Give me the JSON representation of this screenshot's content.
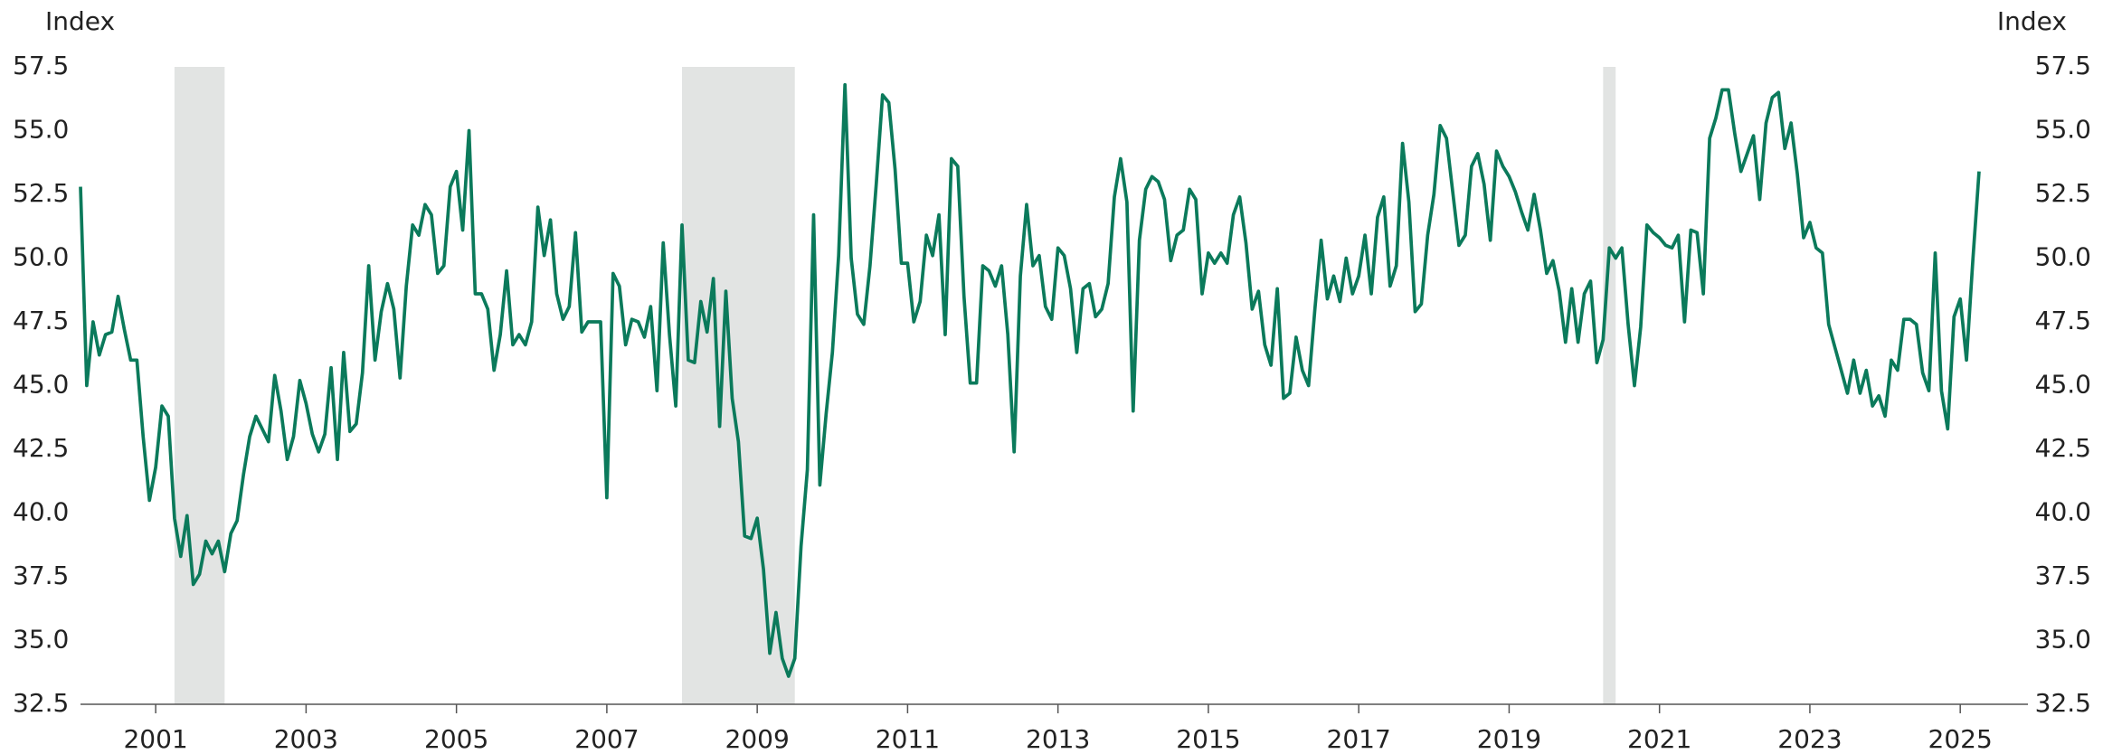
{
  "chart_data": {
    "type": "line",
    "y_label": "Index",
    "y2_label": "Index",
    "color": "#0b7a5b",
    "shade_color": "#e2e4e3",
    "shaded_periods": [
      [
        2001.25,
        2001.917
      ],
      [
        2008.0,
        2009.5
      ],
      [
        2020.25,
        2020.417
      ]
    ],
    "xlim": [
      2000,
      2025.9
    ],
    "xticks": [
      2001,
      2003,
      2005,
      2007,
      2009,
      2011,
      2013,
      2015,
      2017,
      2019,
      2021,
      2023,
      2025
    ],
    "ylim": [
      32.5,
      57.5
    ],
    "yticks": [
      32.5,
      {
        "value": 35,
        "label": "35.0"
      },
      37.5,
      {
        "value": 40,
        "label": "40.0"
      },
      42.5,
      {
        "value": 45,
        "label": "45.0"
      },
      47.5,
      {
        "value": 50,
        "label": "50.0"
      },
      52.5,
      {
        "value": 55,
        "label": "55.0"
      },
      57.5
    ],
    "y2lim": [
      32.5,
      57.5
    ],
    "y2ticks": [
      32.5,
      {
        "value": 35,
        "label": "35.0"
      },
      37.5,
      {
        "value": 40,
        "label": "40.0"
      },
      42.5,
      {
        "value": 45,
        "label": "45.0"
      },
      47.5,
      {
        "value": 50,
        "label": "50.0"
      },
      52.5,
      {
        "value": 55,
        "label": "55.0"
      },
      57.5
    ],
    "x": [
      2000,
      2000.083,
      2000.167,
      2000.25,
      2000.333,
      2000.417,
      2000.5,
      2000.583,
      2000.667,
      2000.75,
      2000.833,
      2000.917,
      2001,
      2001.083,
      2001.167,
      2001.25,
      2001.333,
      2001.417,
      2001.5,
      2001.583,
      2001.667,
      2001.75,
      2001.833,
      2001.917,
      2002,
      2002.083,
      2002.167,
      2002.25,
      2002.333,
      2002.417,
      2002.5,
      2002.583,
      2002.667,
      2002.75,
      2002.833,
      2002.917,
      2003,
      2003.083,
      2003.167,
      2003.25,
      2003.333,
      2003.417,
      2003.5,
      2003.583,
      2003.667,
      2003.75,
      2003.833,
      2003.917,
      2004,
      2004.083,
      2004.167,
      2004.25,
      2004.333,
      2004.417,
      2004.5,
      2004.583,
      2004.667,
      2004.75,
      2004.833,
      2004.917,
      2005,
      2005.083,
      2005.167,
      2005.25,
      2005.333,
      2005.417,
      2005.5,
      2005.583,
      2005.667,
      2005.75,
      2005.833,
      2005.917,
      2006,
      2006.083,
      2006.167,
      2006.25,
      2006.333,
      2006.417,
      2006.5,
      2006.583,
      2006.667,
      2006.75,
      2006.833,
      2006.917,
      2007,
      2007.083,
      2007.167,
      2007.25,
      2007.333,
      2007.417,
      2007.5,
      2007.583,
      2007.667,
      2007.75,
      2007.833,
      2007.917,
      2008,
      2008.083,
      2008.167,
      2008.25,
      2008.333,
      2008.417,
      2008.5,
      2008.583,
      2008.667,
      2008.75,
      2008.833,
      2008.917,
      2009,
      2009.083,
      2009.167,
      2009.25,
      2009.333,
      2009.417,
      2009.5,
      2009.583,
      2009.667,
      2009.75,
      2009.833,
      2009.917,
      2010,
      2010.083,
      2010.167,
      2010.25,
      2010.333,
      2010.417,
      2010.5,
      2010.583,
      2010.667,
      2010.75,
      2010.833,
      2010.917,
      2011,
      2011.083,
      2011.167,
      2011.25,
      2011.333,
      2011.417,
      2011.5,
      2011.583,
      2011.667,
      2011.75,
      2011.833,
      2011.917,
      2012,
      2012.083,
      2012.167,
      2012.25,
      2012.333,
      2012.417,
      2012.5,
      2012.583,
      2012.667,
      2012.75,
      2012.833,
      2012.917,
      2013,
      2013.083,
      2013.167,
      2013.25,
      2013.333,
      2013.417,
      2013.5,
      2013.583,
      2013.667,
      2013.75,
      2013.833,
      2013.917,
      2014,
      2014.083,
      2014.167,
      2014.25,
      2014.333,
      2014.417,
      2014.5,
      2014.583,
      2014.667,
      2014.75,
      2014.833,
      2014.917,
      2015,
      2015.083,
      2015.167,
      2015.25,
      2015.333,
      2015.417,
      2015.5,
      2015.583,
      2015.667,
      2015.75,
      2015.833,
      2015.917,
      2016,
      2016.083,
      2016.167,
      2016.25,
      2016.333,
      2016.417,
      2016.5,
      2016.583,
      2016.667,
      2016.75,
      2016.833,
      2016.917,
      2017,
      2017.083,
      2017.167,
      2017.25,
      2017.333,
      2017.417,
      2017.5,
      2017.583,
      2017.667,
      2017.75,
      2017.833,
      2017.917,
      2018,
      2018.083,
      2018.167,
      2018.25,
      2018.333,
      2018.417,
      2018.5,
      2018.583,
      2018.667,
      2018.75,
      2018.833,
      2018.917,
      2019,
      2019.083,
      2019.167,
      2019.25,
      2019.333,
      2019.417,
      2019.5,
      2019.583,
      2019.667,
      2019.75,
      2019.833,
      2019.917,
      2020,
      2020.083,
      2020.167,
      2020.25,
      2020.333,
      2020.417,
      2020.5,
      2020.583,
      2020.667,
      2020.75,
      2020.833,
      2020.917,
      2021,
      2021.083,
      2021.167,
      2021.25,
      2021.333,
      2021.417,
      2021.5,
      2021.583,
      2021.667,
      2021.75,
      2021.833,
      2021.917,
      2022,
      2022.083,
      2022.167,
      2022.25,
      2022.333,
      2022.417,
      2022.5,
      2022.583,
      2022.667,
      2022.75,
      2022.833,
      2022.917,
      2023,
      2023.083,
      2023.167,
      2023.25,
      2023.333,
      2023.417,
      2023.5,
      2023.583,
      2023.667,
      2023.75,
      2023.833,
      2023.917,
      2024,
      2024.083,
      2024.167,
      2024.25,
      2024.333,
      2024.417,
      2024.5,
      2024.583,
      2024.667,
      2024.75,
      2024.833,
      2024.917,
      2025,
      2025.083,
      2025.167,
      2025.25
    ],
    "values": [
      52.8,
      45.0,
      47.5,
      46.2,
      47.0,
      47.1,
      48.5,
      47.2,
      46.0,
      46.0,
      43.0,
      40.5,
      41.8,
      44.2,
      43.8,
      39.8,
      38.3,
      39.9,
      37.2,
      37.6,
      38.9,
      38.4,
      38.9,
      37.7,
      39.2,
      39.7,
      41.5,
      43.0,
      43.8,
      43.3,
      42.8,
      45.4,
      44.0,
      42.1,
      43.0,
      45.2,
      44.3,
      43.1,
      42.4,
      43.1,
      45.7,
      42.1,
      46.3,
      43.2,
      43.5,
      45.5,
      49.7,
      46.0,
      47.9,
      49.0,
      48.0,
      45.3,
      48.9,
      51.3,
      50.9,
      52.1,
      51.7,
      49.4,
      49.7,
      52.8,
      53.4,
      51.1,
      55.0,
      48.6,
      48.6,
      48.0,
      45.6,
      47.0,
      49.5,
      46.6,
      47.0,
      46.6,
      47.5,
      52.0,
      50.1,
      51.5,
      48.6,
      47.6,
      48.1,
      51.0,
      47.1,
      47.5,
      47.5,
      47.5,
      40.6,
      49.4,
      48.9,
      46.6,
      47.6,
      47.5,
      46.9,
      48.1,
      44.8,
      50.6,
      47.0,
      44.2,
      51.3,
      46.0,
      45.9,
      48.3,
      47.1,
      49.2,
      43.4,
      48.7,
      44.5,
      42.8,
      39.1,
      39.0,
      39.8,
      37.8,
      34.5,
      36.1,
      34.3,
      33.6,
      34.3,
      38.7,
      41.7,
      51.7,
      41.1,
      43.9,
      46.3,
      50.1,
      56.8,
      50.0,
      47.8,
      47.4,
      49.7,
      52.9,
      56.4,
      56.1,
      53.5,
      49.8,
      49.8,
      47.5,
      48.3,
      50.9,
      50.1,
      51.7,
      47.0,
      53.9,
      53.6,
      48.5,
      45.1,
      45.1,
      49.7,
      49.5,
      48.9,
      49.7,
      47.0,
      42.4,
      49.3,
      52.1,
      49.7,
      50.1,
      48.1,
      47.6,
      50.4,
      50.1,
      48.8,
      46.3,
      48.8,
      49.0,
      47.7,
      48.0,
      49.0,
      52.4,
      53.9,
      52.2,
      44.0,
      50.7,
      52.7,
      53.2,
      53.0,
      52.3,
      49.9,
      50.9,
      51.1,
      52.7,
      52.3,
      48.6,
      50.2,
      49.8,
      50.2,
      49.8,
      51.7,
      52.4,
      50.6,
      48.0,
      48.7,
      46.6,
      45.8,
      48.8,
      44.5,
      44.7,
      46.9,
      45.6,
      45.0,
      48.0,
      50.7,
      48.4,
      49.3,
      48.3,
      50.0,
      48.6,
      49.3,
      50.9,
      48.6,
      51.6,
      52.4,
      48.9,
      49.7,
      54.5,
      52.2,
      47.9,
      48.2,
      50.9,
      52.5,
      55.2,
      54.7,
      52.6,
      50.5,
      50.9,
      53.6,
      54.1,
      52.9,
      50.7,
      54.2,
      53.6,
      53.2,
      52.6,
      51.8,
      51.1,
      52.5,
      51.1,
      49.4,
      49.9,
      48.7,
      46.7,
      48.8,
      46.7,
      48.6,
      49.1,
      45.9,
      46.8,
      50.4,
      50.0,
      50.4,
      47.4,
      45.0,
      47.3,
      51.3,
      51.0,
      50.8,
      50.5,
      50.4,
      50.9,
      47.5,
      51.1,
      51.0,
      48.6,
      54.7,
      55.5,
      56.6,
      56.6,
      54.9,
      53.4,
      54.1,
      54.8,
      52.3,
      55.3,
      56.3,
      56.5,
      54.3,
      55.3,
      53.3,
      50.8,
      51.4,
      50.4,
      50.2,
      47.4,
      46.5,
      45.6,
      44.7,
      46.0,
      44.7,
      45.6,
      44.2,
      44.6,
      43.8,
      46.0,
      45.6,
      47.6,
      47.6,
      47.4,
      45.5,
      44.8,
      50.2,
      44.8,
      43.3,
      47.7,
      48.4,
      46.0,
      49.9,
      53.4
    ]
  }
}
